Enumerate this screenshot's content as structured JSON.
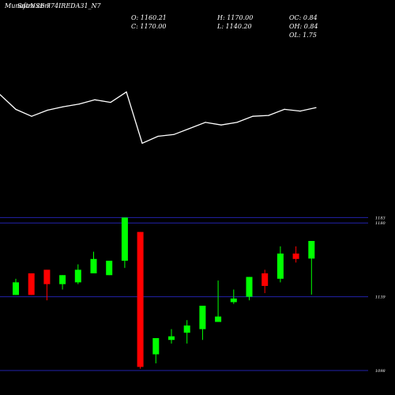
{
  "header": {
    "prefix": "Munafa",
    "site": "Sutra.com",
    "symbol": "NSE 774IREDA31_N7"
  },
  "stats": {
    "open": "O: 1160.21",
    "high": "H: 1170.00",
    "oc": "OC: 0.84",
    "close": "C: 1170.00",
    "low": "L: 1140.20",
    "oh": "OH: 0.84",
    "ol": "OL: 1.75"
  },
  "colors": {
    "background": "#000000",
    "up": "#00ff00",
    "down": "#ff0000",
    "line": "#ffffff",
    "gridline": "#2222aa",
    "text": "#ffffff"
  },
  "chart_data": [
    {
      "type": "line",
      "title": "",
      "values": [
        73,
        56,
        48,
        55,
        59,
        62,
        67,
        64,
        76,
        17,
        25,
        27,
        34,
        41,
        38,
        41,
        48,
        49,
        56,
        54,
        58
      ]
    },
    {
      "type": "candlestick",
      "ylim": [
        1098,
        1188
      ],
      "reference_lines": [
        {
          "value": 1183,
          "label": "1183"
        },
        {
          "value": 1180,
          "label": "1180"
        },
        {
          "value": 1139,
          "label": "1139"
        },
        {
          "value": 1098,
          "label": "1098"
        }
      ],
      "candles": [
        {
          "open": 1140,
          "close": 1147,
          "high": 1149,
          "low": 1140
        },
        {
          "open": 1152,
          "close": 1140,
          "high": 1152,
          "low": 1140
        },
        {
          "open": 1154,
          "close": 1146,
          "high": 1154,
          "low": 1137
        },
        {
          "open": 1146,
          "close": 1151,
          "high": 1151,
          "low": 1143
        },
        {
          "open": 1147,
          "close": 1154,
          "high": 1157,
          "low": 1146
        },
        {
          "open": 1152,
          "close": 1160,
          "high": 1164,
          "low": 1152
        },
        {
          "open": 1151,
          "close": 1159,
          "high": 1159,
          "low": 1151
        },
        {
          "open": 1159,
          "close": 1183,
          "high": 1183,
          "low": 1155
        },
        {
          "open": 1175,
          "close": 1100,
          "high": 1175,
          "low": 1099
        },
        {
          "open": 1107,
          "close": 1116,
          "high": 1116,
          "low": 1102
        },
        {
          "open": 1115,
          "close": 1117,
          "high": 1121,
          "low": 1113
        },
        {
          "open": 1119,
          "close": 1123,
          "high": 1126,
          "low": 1113
        },
        {
          "open": 1121,
          "close": 1134,
          "high": 1134,
          "low": 1115
        },
        {
          "open": 1125,
          "close": 1128,
          "high": 1148,
          "low": 1125
        },
        {
          "open": 1136,
          "close": 1138,
          "high": 1143,
          "low": 1135
        },
        {
          "open": 1139,
          "close": 1150,
          "high": 1150,
          "low": 1137
        },
        {
          "open": 1152,
          "close": 1145,
          "high": 1154,
          "low": 1141
        },
        {
          "open": 1149,
          "close": 1163,
          "high": 1167,
          "low": 1147
        },
        {
          "open": 1163,
          "close": 1160,
          "high": 1167,
          "low": 1158
        },
        {
          "open": 1160.21,
          "close": 1170,
          "high": 1170,
          "low": 1140.2
        }
      ]
    }
  ]
}
